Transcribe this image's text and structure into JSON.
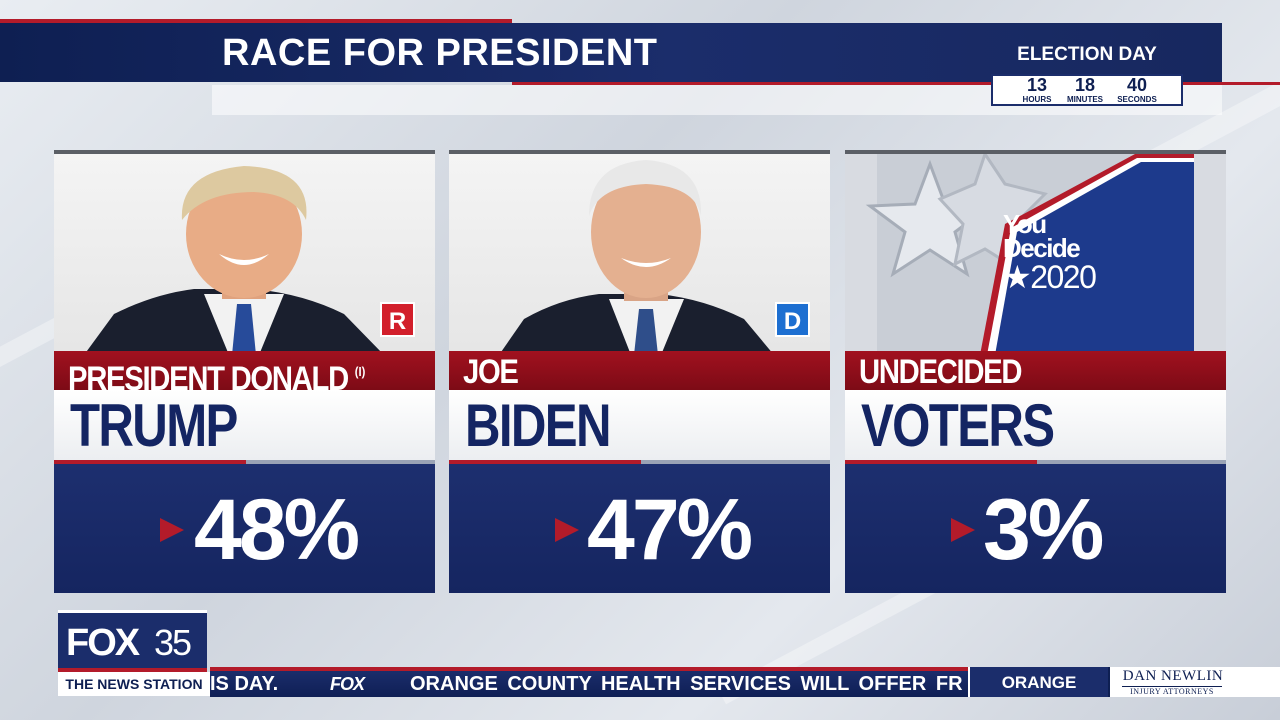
{
  "header": {
    "title": "RACE FOR PRESIDENT"
  },
  "countdown": {
    "label": "ELECTION DAY",
    "hours": "13",
    "hours_label": "HOURS",
    "minutes": "18",
    "minutes_label": "MINUTES",
    "seconds": "40",
    "seconds_label": "SECONDS"
  },
  "candidates": [
    {
      "first_line": "PRESIDENT DONALD",
      "incumbent_mark": "(I)",
      "last_line": "TRUMP",
      "party": "R",
      "party_color": "#d21f2b",
      "percent": "48%"
    },
    {
      "first_line": "JOE",
      "last_line": "BIDEN",
      "party": "D",
      "party_color": "#1d6fd1",
      "percent": "47%"
    },
    {
      "first_line": "UNDECIDED",
      "last_line": "VOTERS",
      "percent": "3%"
    }
  ],
  "undecided_logo": {
    "line1": "You",
    "line2": "Decide",
    "line3": "★2020"
  },
  "bottom": {
    "logo_fox": "FOX",
    "logo_num": "35",
    "station_tagline": "THE NEWS STATION",
    "ticker_fragment": "IS DAY.",
    "ticker_logo": "FOX",
    "ticker_text": "ORANGE COUNTY HEALTH SERVICES WILL OFFER FR",
    "county": "ORANGE",
    "sponsor_name": "DAN NEWLIN",
    "sponsor_sub": "INJURY ATTORNEYS"
  },
  "colors": {
    "navy": "#1b2d6b",
    "red": "#b31b2a",
    "republican": "#d21f2b",
    "democrat": "#1d6fd1"
  }
}
